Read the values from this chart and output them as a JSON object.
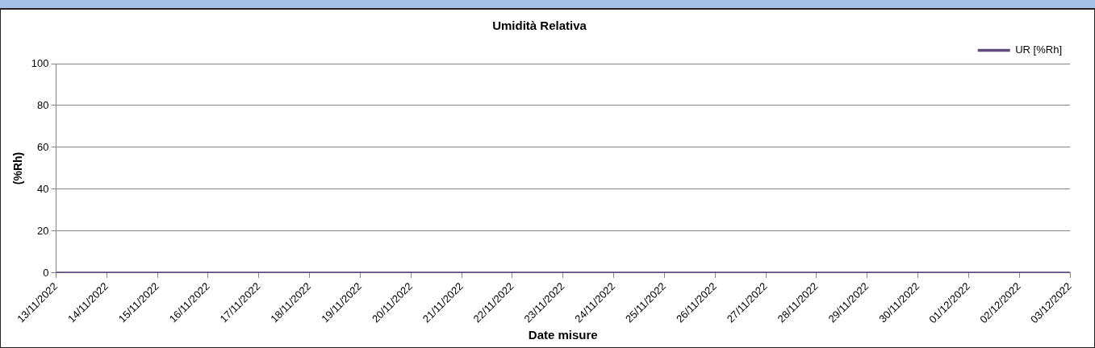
{
  "chart_data": {
    "type": "line",
    "title": "Umidità Relativa",
    "xlabel": "Date misure",
    "ylabel": "(%Rh)",
    "categories": [
      "13/11/2022",
      "14/11/2022",
      "15/11/2022",
      "16/11/2022",
      "17/11/2022",
      "18/11/2022",
      "19/11/2022",
      "20/11/2022",
      "21/11/2022",
      "22/11/2022",
      "23/11/2022",
      "24/11/2022",
      "25/11/2022",
      "26/11/2022",
      "27/11/2022",
      "28/11/2022",
      "29/11/2022",
      "30/11/2022",
      "01/12/2022",
      "02/12/2022",
      "03/12/2022"
    ],
    "series": [
      {
        "name": "UR [%Rh]",
        "color": "#604a7b",
        "values": [
          0,
          0,
          0,
          0,
          0,
          0,
          0,
          0,
          0,
          0,
          0,
          0,
          0,
          0,
          0,
          0,
          0,
          0,
          0,
          0,
          0
        ]
      }
    ],
    "ylim": [
      0,
      100
    ],
    "yticks": [
      0,
      20,
      40,
      60,
      80,
      100
    ],
    "grid": "y",
    "legend": "top right",
    "marker": "none",
    "line_style": "solid"
  }
}
